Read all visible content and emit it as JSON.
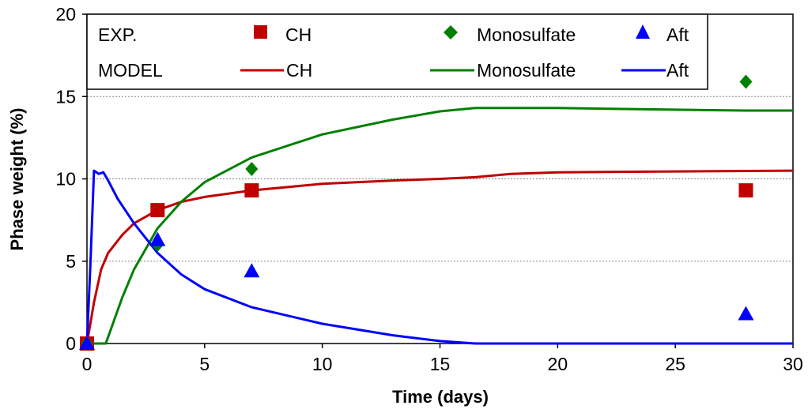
{
  "chart_data": {
    "type": "line",
    "xlabel": "Time (days)",
    "ylabel": "Phase weight (%)",
    "xlim": [
      0,
      30
    ],
    "ylim": [
      0,
      20
    ],
    "x_ticks": [
      "0",
      "5",
      "10",
      "15",
      "20",
      "25",
      "30"
    ],
    "y_ticks": [
      "0",
      "5",
      "10",
      "15",
      "20"
    ],
    "grid": "horizontal dotted at y = 5, 10, 15",
    "legend_position": "top-left",
    "legend": {
      "exp_label": "EXP.",
      "model_label": "MODEL",
      "entries": [
        {
          "name": "CH",
          "color": "#c00000",
          "marker": "square"
        },
        {
          "name": "Monosulfate",
          "color": "#008000",
          "marker": "diamond"
        },
        {
          "name": "Aft",
          "color": "#0000ff",
          "marker": "triangle"
        }
      ]
    },
    "experimental": [
      {
        "name": "CH",
        "color": "#c00000",
        "marker": "square",
        "x": [
          0,
          3,
          7,
          28
        ],
        "y": [
          0,
          8.1,
          9.3,
          9.3
        ]
      },
      {
        "name": "Monosulfate",
        "color": "#008000",
        "marker": "diamond",
        "x": [
          0,
          3,
          7,
          28
        ],
        "y": [
          0,
          6.0,
          10.6,
          15.9
        ]
      },
      {
        "name": "Aft",
        "color": "#0000ff",
        "marker": "triangle",
        "x": [
          0,
          3,
          7,
          28
        ],
        "y": [
          0,
          6.3,
          4.4,
          1.8
        ]
      }
    ],
    "model": [
      {
        "name": "CH",
        "color": "#c00000",
        "x": [
          0,
          0.3,
          0.6,
          0.9,
          1.5,
          2,
          3,
          4,
          5,
          7,
          10,
          13,
          15,
          16.5,
          18,
          20,
          25,
          30
        ],
        "y": [
          0,
          2.5,
          4.5,
          5.5,
          6.6,
          7.3,
          8.1,
          8.6,
          8.9,
          9.3,
          9.7,
          9.9,
          10.0,
          10.1,
          10.3,
          10.4,
          10.45,
          10.5
        ]
      },
      {
        "name": "Monosulfate",
        "color": "#008000",
        "x": [
          0,
          0.8,
          1.0,
          1.5,
          2,
          3,
          4,
          5,
          7,
          10,
          13,
          15,
          16.5,
          20,
          25,
          28,
          30
        ],
        "y": [
          0,
          0,
          0.8,
          2.8,
          4.5,
          7.0,
          8.6,
          9.8,
          11.3,
          12.7,
          13.6,
          14.1,
          14.3,
          14.3,
          14.2,
          14.15,
          14.15
        ]
      },
      {
        "name": "Aft",
        "color": "#0000ff",
        "x": [
          0,
          0.15,
          0.3,
          0.5,
          0.7,
          0.9,
          1.3,
          2,
          3,
          4,
          5,
          7,
          10,
          13,
          15,
          16.5,
          20,
          30
        ],
        "y": [
          0,
          5,
          10.5,
          10.3,
          10.4,
          9.9,
          8.8,
          7.3,
          5.5,
          4.2,
          3.3,
          2.2,
          1.2,
          0.5,
          0.15,
          0,
          0,
          0
        ]
      }
    ]
  }
}
